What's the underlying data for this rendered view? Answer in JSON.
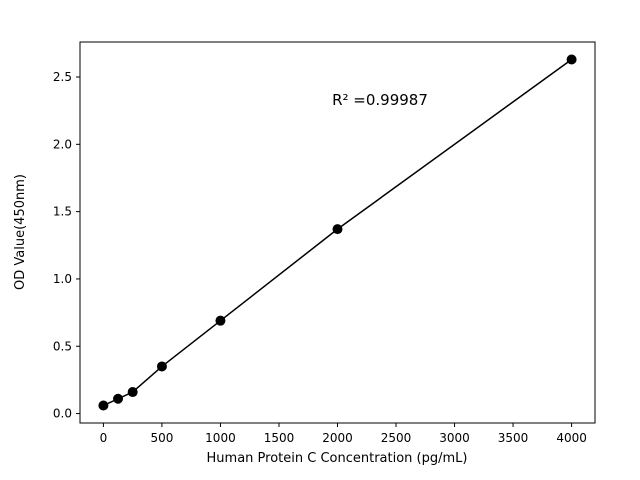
{
  "chart_data": {
    "type": "scatter",
    "title": "",
    "xlabel": "Human Protein C Concentration (pg/mL)",
    "ylabel": "OD Value(450nm)",
    "annotation": "R² =0.99987",
    "x": [
      0,
      125,
      250,
      500,
      1000,
      2000,
      4000
    ],
    "y": [
      0.06,
      0.11,
      0.16,
      0.35,
      0.69,
      1.37,
      2.63
    ],
    "xticks": [
      "0",
      "500",
      "1000",
      "1500",
      "2000",
      "2500",
      "3000",
      "3500",
      "4000"
    ],
    "yticks": [
      "0.0",
      "0.5",
      "1.0",
      "1.5",
      "2.0",
      "2.5"
    ],
    "xlim": [
      -200,
      4200
    ],
    "ylim": [
      -0.07,
      2.76
    ],
    "grid": false,
    "legend": false,
    "line": true,
    "line_color": "#000000",
    "marker_color": "#000000",
    "background": "#ffffff"
  }
}
